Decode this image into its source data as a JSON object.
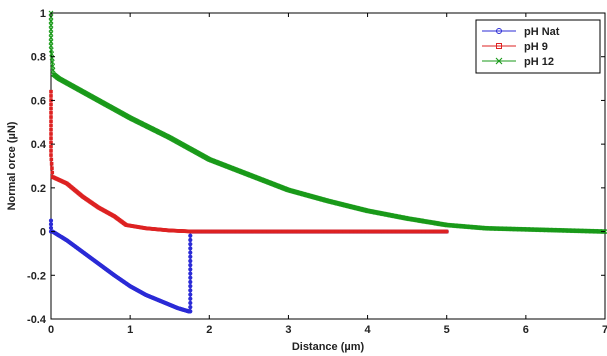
{
  "chart_data": {
    "type": "line",
    "xlabel": "Distance (µm)",
    "ylabel": "Normal orce (µN)",
    "xlim": [
      0,
      7
    ],
    "ylim": [
      -0.4,
      1
    ],
    "xticks": [
      "0",
      "1",
      "2",
      "3",
      "4",
      "5",
      "6",
      "7"
    ],
    "yticks": [
      "-0.4",
      "-0.2",
      "0",
      "0.2",
      "0.4",
      "0.6",
      "0.8",
      "1"
    ],
    "grid": false,
    "legend_position": "top-right",
    "series": [
      {
        "name": "pH Nat",
        "color": "#2b2bd6",
        "marker": "circle",
        "x": [
          0.0,
          0.0,
          0.02,
          0.2,
          0.5,
          0.8,
          1.0,
          1.2,
          1.4,
          1.6,
          1.74,
          1.76,
          1.76,
          2.5,
          3.5,
          4.5,
          5.0
        ],
        "y": [
          0.05,
          0.0,
          0.0,
          -0.04,
          -0.12,
          -0.2,
          -0.25,
          -0.29,
          -0.32,
          -0.35,
          -0.365,
          -0.365,
          0.0,
          0.0,
          0.0,
          0.0,
          0.0
        ]
      },
      {
        "name": "pH 9",
        "color": "#dd2222",
        "marker": "square",
        "x": [
          0.0,
          0.0,
          0.02,
          0.2,
          0.4,
          0.6,
          0.8,
          0.95,
          1.2,
          1.5,
          1.8,
          2.5,
          3.5,
          4.5,
          5.0
        ],
        "y": [
          0.64,
          0.35,
          0.25,
          0.22,
          0.16,
          0.11,
          0.07,
          0.03,
          0.015,
          0.005,
          0.0,
          0.0,
          0.0,
          0.0,
          0.0
        ]
      },
      {
        "name": "pH 12",
        "color": "#1a9a1a",
        "marker": "x",
        "x": [
          0.0,
          0.0,
          0.03,
          0.1,
          0.5,
          1.0,
          1.5,
          2.0,
          2.5,
          3.0,
          3.5,
          4.0,
          4.5,
          5.0,
          5.5,
          6.0,
          6.5,
          7.0
        ],
        "y": [
          1.0,
          0.85,
          0.72,
          0.7,
          0.62,
          0.52,
          0.43,
          0.33,
          0.26,
          0.19,
          0.14,
          0.095,
          0.06,
          0.03,
          0.015,
          0.01,
          0.005,
          0.0
        ]
      }
    ]
  }
}
